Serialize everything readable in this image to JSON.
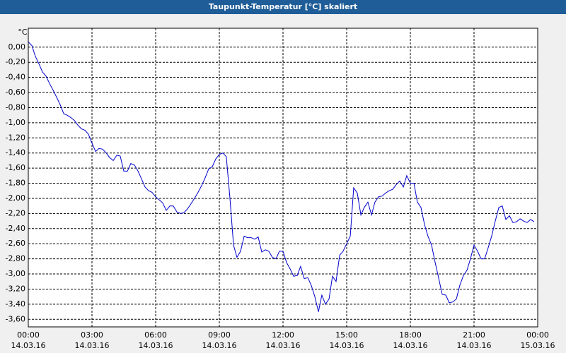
{
  "chart_data": {
    "type": "line",
    "title": "Taupunkt-Temperatur [°C] skaliert",
    "y_label": "°C",
    "xlim": [
      0,
      24
    ],
    "xticks": [
      {
        "value": 0,
        "label": "00:00",
        "date": "14.03.16"
      },
      {
        "value": 3,
        "label": "03:00",
        "date": "14.03.16"
      },
      {
        "value": 6,
        "label": "06:00",
        "date": "14.03.16"
      },
      {
        "value": 9,
        "label": "09:00",
        "date": "14.03.16"
      },
      {
        "value": 12,
        "label": "12:00",
        "date": "14.03.16"
      },
      {
        "value": 15,
        "label": "15:00",
        "date": "14.03.16"
      },
      {
        "value": 18,
        "label": "18:00",
        "date": "14.03.16"
      },
      {
        "value": 21,
        "label": "21:00",
        "date": "14.03.16"
      },
      {
        "value": 24,
        "label": "00:00",
        "date": "15.03.16"
      }
    ],
    "ylim": [
      -3.7,
      0.25
    ],
    "yticks": [
      {
        "value": 0,
        "label": "0,00"
      },
      {
        "value": -0.2,
        "label": "-0,20"
      },
      {
        "value": -0.4,
        "label": "-0,40"
      },
      {
        "value": -0.6,
        "label": "-0,60"
      },
      {
        "value": -0.8,
        "label": "-0,80"
      },
      {
        "value": -1,
        "label": "-1,00"
      },
      {
        "value": -1.2,
        "label": "-1,20"
      },
      {
        "value": -1.4,
        "label": "-1,40"
      },
      {
        "value": -1.6,
        "label": "-1,60"
      },
      {
        "value": -1.8,
        "label": "-1,80"
      },
      {
        "value": -2,
        "label": "-2,00"
      },
      {
        "value": -2.2,
        "label": "-2,20"
      },
      {
        "value": -2.4,
        "label": "-2,40"
      },
      {
        "value": -2.6,
        "label": "-2,60"
      },
      {
        "value": -2.8,
        "label": "-2,80"
      },
      {
        "value": -3,
        "label": "-3,00"
      },
      {
        "value": -3.2,
        "label": "-3,20"
      },
      {
        "value": -3.4,
        "label": "-3,40"
      },
      {
        "value": -3.6,
        "label": "-3,60"
      }
    ],
    "grid": true,
    "x": [
      0,
      0.17,
      0.33,
      0.5,
      0.67,
      0.83,
      1,
      1.17,
      1.33,
      1.5,
      1.67,
      1.83,
      2,
      2.17,
      2.33,
      2.5,
      2.67,
      2.83,
      3,
      3.17,
      3.33,
      3.5,
      3.67,
      3.83,
      4,
      4.17,
      4.33,
      4.5,
      4.67,
      4.83,
      5,
      5.17,
      5.33,
      5.5,
      5.67,
      5.83,
      6,
      6.17,
      6.33,
      6.5,
      6.67,
      6.83,
      7,
      7.17,
      7.33,
      7.5,
      7.67,
      7.83,
      8,
      8.17,
      8.33,
      8.5,
      8.67,
      8.83,
      9,
      9.17,
      9.33,
      9.5,
      9.67,
      9.83,
      10,
      10.17,
      10.33,
      10.5,
      10.67,
      10.83,
      11,
      11.17,
      11.33,
      11.5,
      11.67,
      11.83,
      12,
      12.17,
      12.33,
      12.5,
      12.67,
      12.83,
      13,
      13.17,
      13.33,
      13.5,
      13.67,
      13.83,
      14,
      14.17,
      14.33,
      14.5,
      14.67,
      14.83,
      15,
      15.17,
      15.33,
      15.5,
      15.67,
      15.83,
      16,
      16.17,
      16.33,
      16.5,
      16.67,
      16.83,
      17,
      17.17,
      17.33,
      17.5,
      17.67,
      17.83,
      18,
      18.17,
      18.33,
      18.5,
      18.67,
      18.83,
      19,
      19.17,
      19.33,
      19.5,
      19.67,
      19.83,
      20,
      20.17,
      20.33,
      20.5,
      20.67,
      20.83,
      21,
      21.17,
      21.33,
      21.5,
      21.67,
      21.83,
      22,
      22.17,
      22.33,
      22.5,
      22.67,
      22.83,
      23,
      23.17,
      23.33,
      23.5,
      23.67,
      23.83
    ],
    "series": [
      {
        "name": "Taupunkt",
        "color": "#0000cc",
        "values": [
          0.07,
          0.02,
          -0.12,
          -0.22,
          -0.33,
          -0.38,
          -0.48,
          -0.57,
          -0.66,
          -0.76,
          -0.88,
          -0.9,
          -0.93,
          -0.97,
          -1.03,
          -1.08,
          -1.1,
          -1.15,
          -1.27,
          -1.38,
          -1.34,
          -1.35,
          -1.4,
          -1.46,
          -1.5,
          -1.43,
          -1.44,
          -1.64,
          -1.64,
          -1.54,
          -1.56,
          -1.64,
          -1.74,
          -1.85,
          -1.9,
          -1.92,
          -1.98,
          -2.02,
          -2.06,
          -2.16,
          -2.1,
          -2.1,
          -2.18,
          -2.2,
          -2.19,
          -2.14,
          -2.07,
          -2,
          -1.92,
          -1.83,
          -1.73,
          -1.61,
          -1.58,
          -1.48,
          -1.42,
          -1.4,
          -1.45,
          -2,
          -2.62,
          -2.78,
          -2.7,
          -2.5,
          -2.52,
          -2.52,
          -2.54,
          -2.51,
          -2.71,
          -2.68,
          -2.7,
          -2.78,
          -2.8,
          -2.7,
          -2.7,
          -2.85,
          -2.93,
          -3.03,
          -3.02,
          -2.9,
          -3.06,
          -3.05,
          -3.15,
          -3.3,
          -3.5,
          -3.28,
          -3.4,
          -3.33,
          -3.03,
          -3.1,
          -2.75,
          -2.7,
          -2.6,
          -2.5,
          -1.86,
          -1.93,
          -2.22,
          -2.12,
          -2.05,
          -2.22,
          -2.05,
          -1.98,
          -1.97,
          -1.93,
          -1.9,
          -1.88,
          -1.82,
          -1.77,
          -1.85,
          -1.7,
          -1.8,
          -1.8,
          -2.05,
          -2.12,
          -2.35,
          -2.5,
          -2.62,
          -2.85,
          -3.05,
          -3.27,
          -3.28,
          -3.38,
          -3.37,
          -3.33,
          -3.15,
          -3.02,
          -2.95,
          -2.8,
          -2.62,
          -2.7,
          -2.8,
          -2.8,
          -2.65,
          -2.5,
          -2.3,
          -2.12,
          -2.1,
          -2.28,
          -2.23,
          -2.32,
          -2.31,
          -2.27,
          -2.3,
          -2.32,
          -2.28,
          -2.31
        ]
      }
    ]
  }
}
